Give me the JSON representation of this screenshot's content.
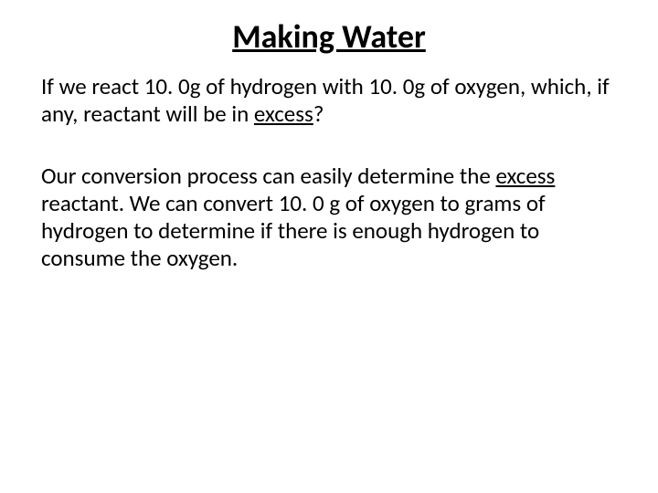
{
  "slide": {
    "title": "Making Water",
    "para1_part1": "If we react 10. 0g of hydrogen with 10. 0g of oxygen, which, if any, reactant will be in ",
    "para1_underlined": "excess",
    "para1_part2": "?",
    "para2_part1": "Our conversion process can easily determine the ",
    "para2_underlined": "excess",
    "para2_part2": " reactant.  We can convert 10. 0 g of oxygen to grams of hydrogen to determine if there is enough hydrogen to consume the oxygen."
  },
  "colors": {
    "background": "#ffffff",
    "text": "#000000"
  },
  "typography": {
    "title_fontsize": 36,
    "body_fontsize": 25,
    "font_family": "Calibri"
  }
}
